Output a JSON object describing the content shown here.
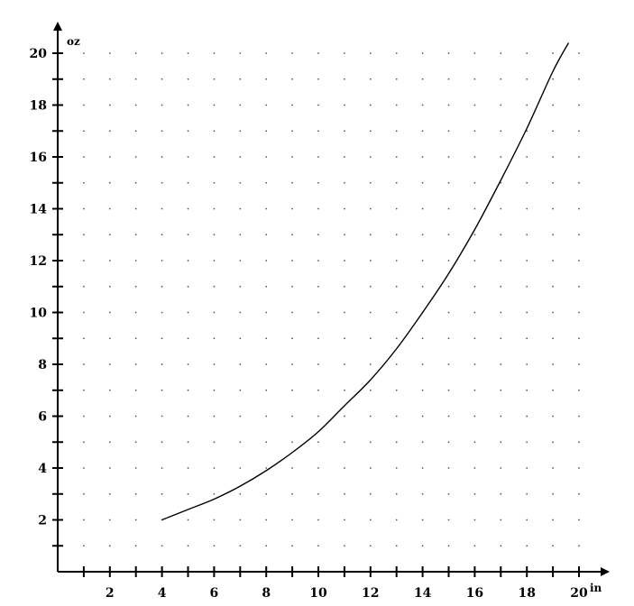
{
  "chart_data": {
    "type": "line",
    "title": "",
    "xlabel": "in",
    "ylabel": "oz",
    "xlim": [
      0,
      21
    ],
    "ylim": [
      0,
      21
    ],
    "x_ticks": [
      2,
      4,
      6,
      8,
      10,
      12,
      14,
      16,
      18,
      20
    ],
    "y_ticks": [
      2,
      4,
      6,
      8,
      10,
      12,
      14,
      16,
      18,
      20
    ],
    "x_tick_labels": [
      "2",
      "4",
      "6",
      "8",
      "10",
      "12",
      "14",
      "16",
      "18",
      "20"
    ],
    "y_tick_labels": [
      "2",
      "4",
      "6",
      "8",
      "10",
      "12",
      "14",
      "16",
      "18",
      "20"
    ],
    "grid": "dotted",
    "line_color": "#000000",
    "series": [
      {
        "x": [
          4,
          5,
          6,
          7,
          8,
          9,
          10,
          11,
          12,
          13,
          14,
          15,
          16,
          17,
          18,
          19,
          19.6
        ],
        "values": [
          2.0,
          2.4,
          2.8,
          3.3,
          3.9,
          4.6,
          5.4,
          6.4,
          7.4,
          8.6,
          10.0,
          11.5,
          13.2,
          15.1,
          17.1,
          19.3,
          20.4
        ]
      }
    ]
  }
}
